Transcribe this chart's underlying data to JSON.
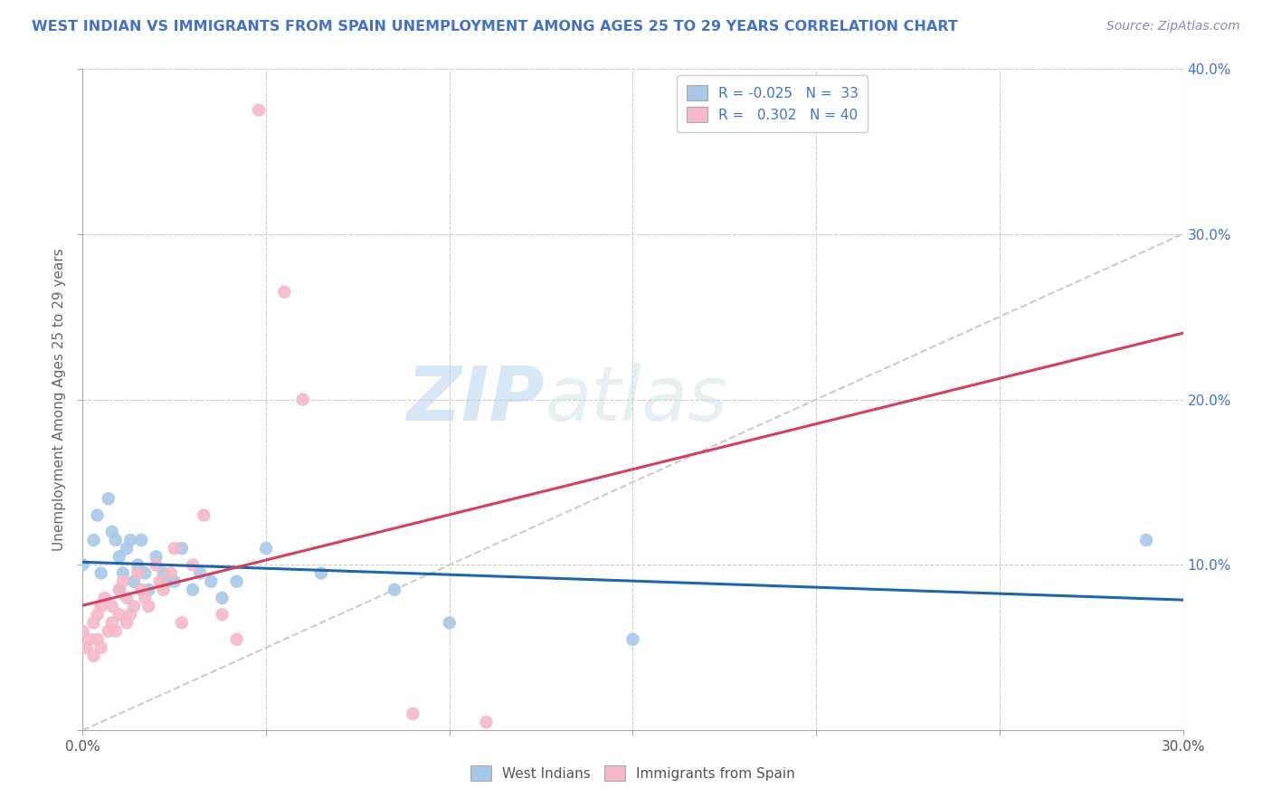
{
  "title": "WEST INDIAN VS IMMIGRANTS FROM SPAIN UNEMPLOYMENT AMONG AGES 25 TO 29 YEARS CORRELATION CHART",
  "source": "Source: ZipAtlas.com",
  "ylabel": "Unemployment Among Ages 25 to 29 years",
  "xlim": [
    0.0,
    0.3
  ],
  "ylim": [
    0.0,
    0.4
  ],
  "blue_color": "#a8c8e8",
  "pink_color": "#f4b8c8",
  "blue_line_color": "#2166ac",
  "pink_line_color": "#d44060",
  "diagonal_color": "#cccccc",
  "watermark_zip": "ZIP",
  "watermark_atlas": "atlas",
  "title_color": "#4472c4",
  "source_color": "#8888bb",
  "west_indians_x": [
    0.0,
    0.003,
    0.004,
    0.005,
    0.007,
    0.008,
    0.009,
    0.01,
    0.01,
    0.011,
    0.012,
    0.013,
    0.014,
    0.015,
    0.016,
    0.017,
    0.018,
    0.02,
    0.022,
    0.023,
    0.025,
    0.027,
    0.03,
    0.032,
    0.035,
    0.038,
    0.042,
    0.05,
    0.065,
    0.085,
    0.1,
    0.15,
    0.29
  ],
  "west_indians_y": [
    0.1,
    0.115,
    0.13,
    0.095,
    0.14,
    0.12,
    0.115,
    0.105,
    0.085,
    0.095,
    0.11,
    0.115,
    0.09,
    0.1,
    0.115,
    0.095,
    0.085,
    0.105,
    0.095,
    0.09,
    0.09,
    0.11,
    0.085,
    0.095,
    0.09,
    0.08,
    0.09,
    0.11,
    0.095,
    0.085,
    0.065,
    0.055,
    0.115
  ],
  "immigrants_spain_x": [
    0.0,
    0.001,
    0.002,
    0.003,
    0.003,
    0.004,
    0.004,
    0.005,
    0.005,
    0.006,
    0.007,
    0.008,
    0.008,
    0.009,
    0.01,
    0.01,
    0.011,
    0.012,
    0.012,
    0.013,
    0.014,
    0.015,
    0.016,
    0.017,
    0.018,
    0.02,
    0.021,
    0.022,
    0.024,
    0.025,
    0.027,
    0.03,
    0.033,
    0.038,
    0.042,
    0.048,
    0.055,
    0.06,
    0.09,
    0.11
  ],
  "immigrants_spain_y": [
    0.06,
    0.05,
    0.055,
    0.065,
    0.045,
    0.07,
    0.055,
    0.075,
    0.05,
    0.08,
    0.06,
    0.075,
    0.065,
    0.06,
    0.085,
    0.07,
    0.09,
    0.08,
    0.065,
    0.07,
    0.075,
    0.095,
    0.085,
    0.08,
    0.075,
    0.1,
    0.09,
    0.085,
    0.095,
    0.11,
    0.065,
    0.1,
    0.13,
    0.07,
    0.055,
    0.375,
    0.265,
    0.2,
    0.01,
    0.005
  ]
}
